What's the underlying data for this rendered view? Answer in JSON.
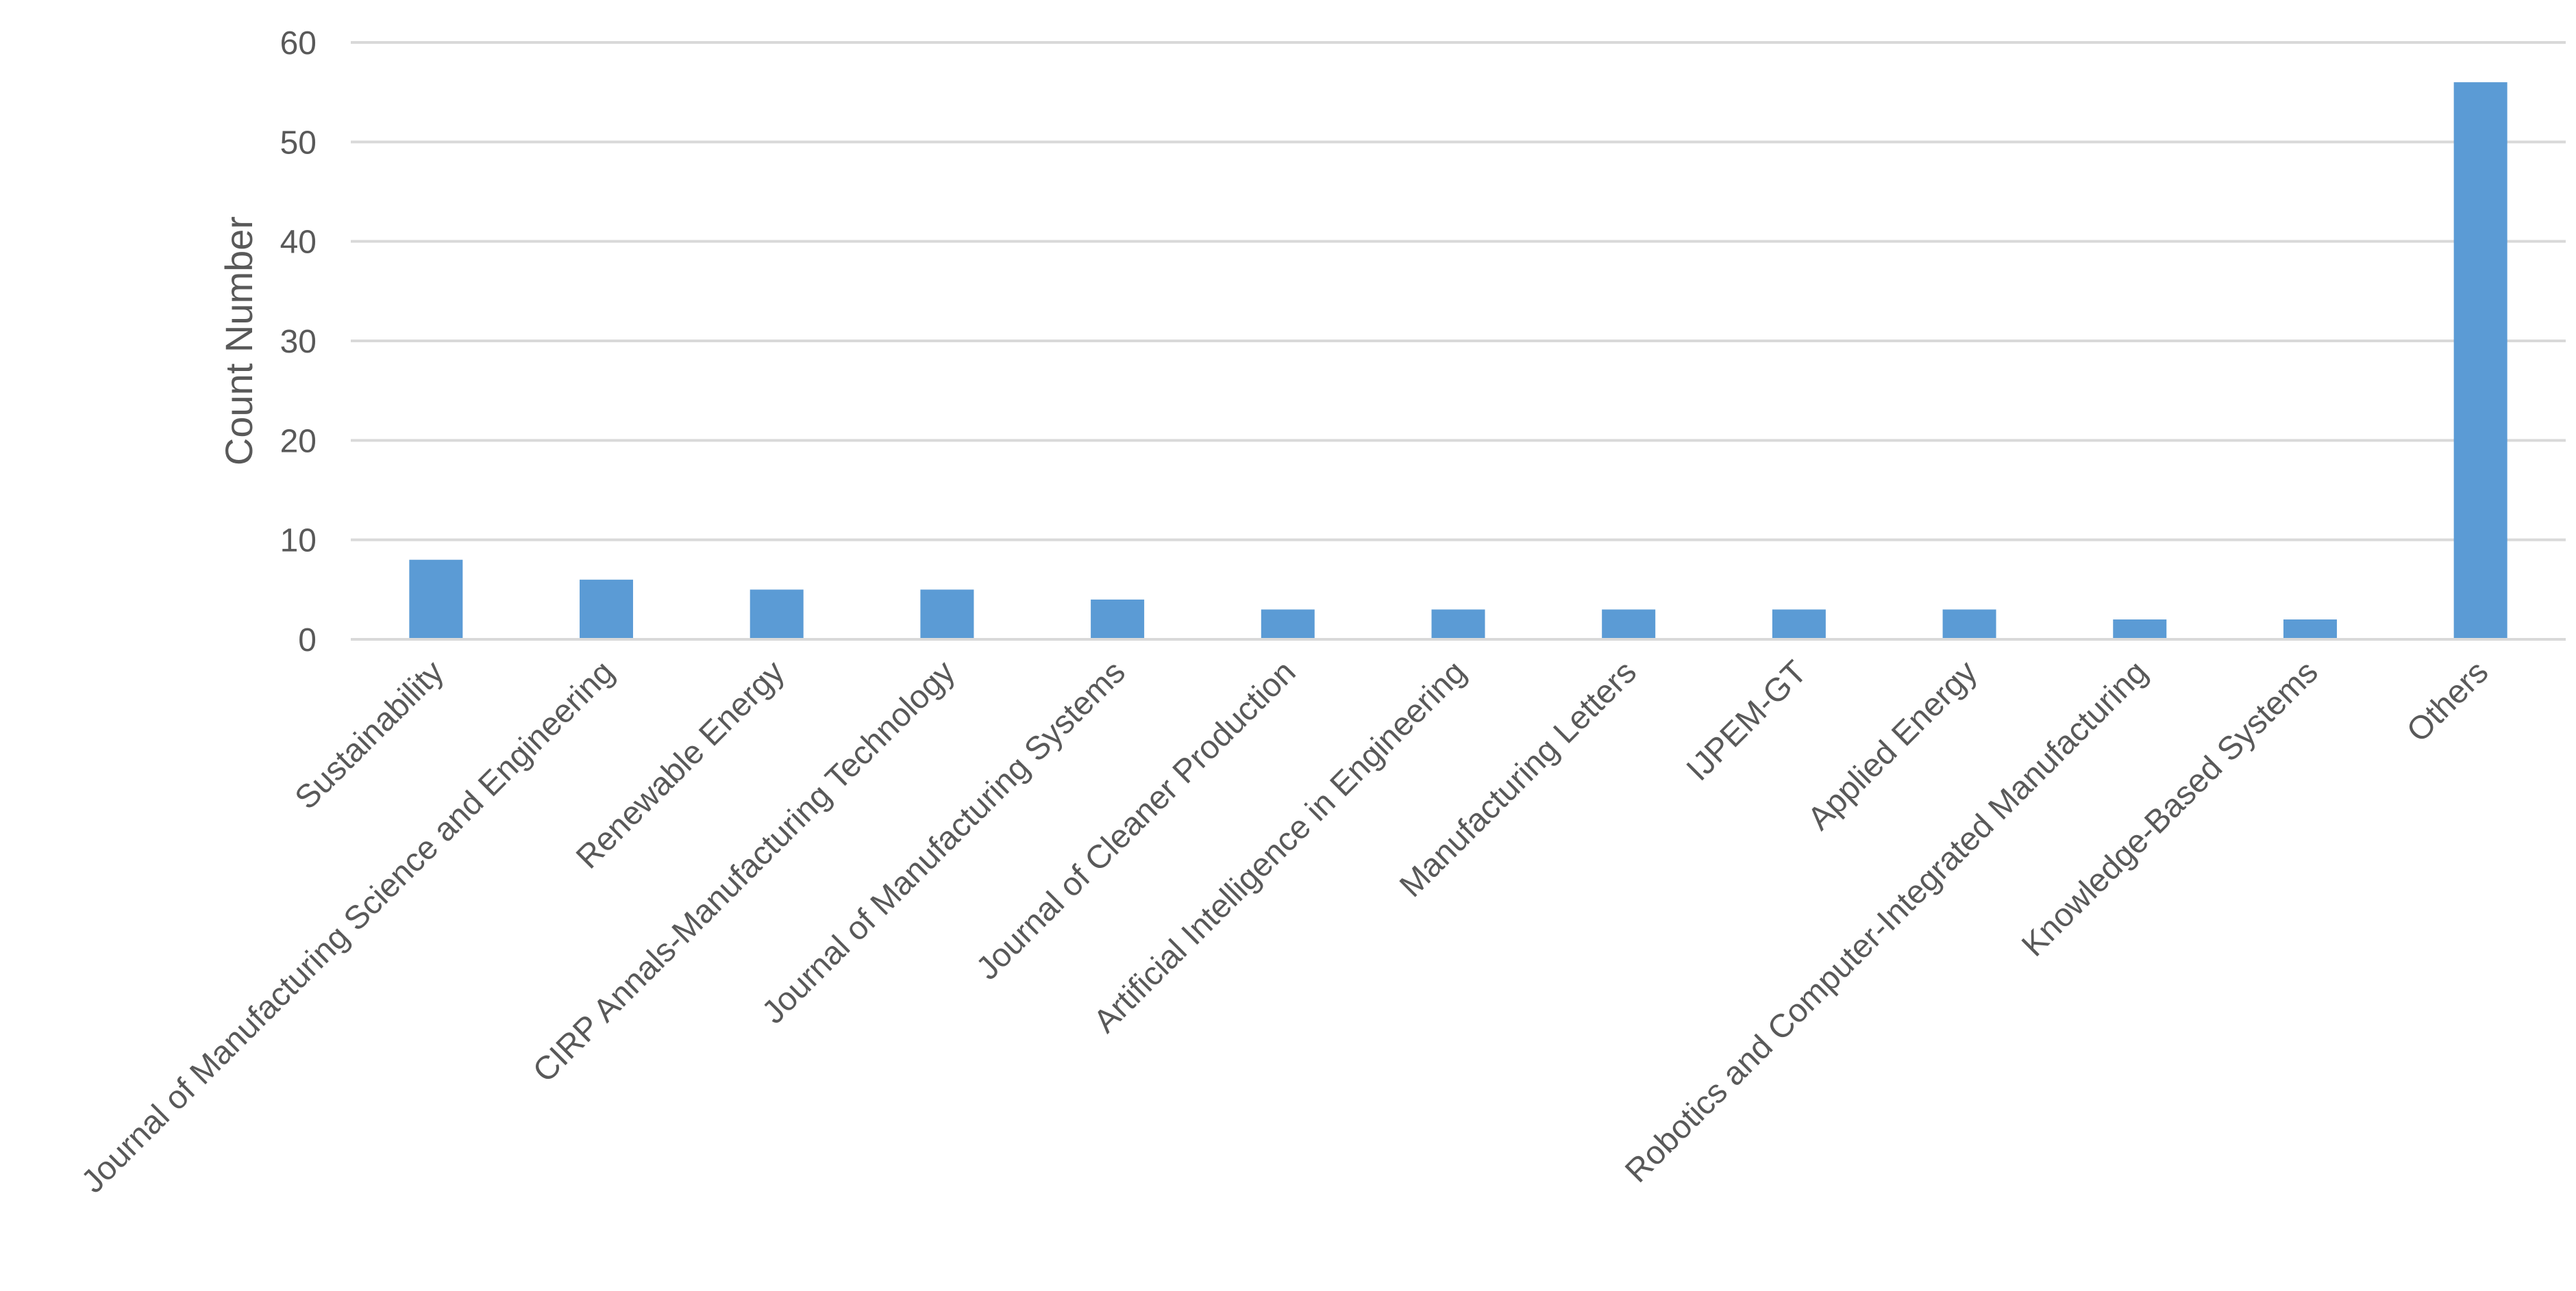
{
  "chart_data": {
    "type": "bar",
    "title": "",
    "xlabel": "",
    "ylabel": "Count Number",
    "ylim": [
      0,
      60
    ],
    "yticks": [
      0,
      10,
      20,
      30,
      40,
      50,
      60
    ],
    "grid": true,
    "legend": "none",
    "bar_color": "#5B9BD5",
    "categories": [
      "Sustainability",
      "Journal of Manufacturing Science and Engineering",
      "Renewable Energy",
      "CIRP Annals-Manufacturing Technology",
      "Journal of Manufacturing Systems",
      "Journal of Cleaner Production",
      "Artificial Intelligence in Engineering",
      "Manufacturing Letters",
      "IJPEM-GT",
      "Applied Energy",
      "Robotics and Computer-Integrated Manufacturing",
      "Knowledge-Based Systems",
      "Others"
    ],
    "values": [
      8,
      6,
      5,
      5,
      4,
      3,
      3,
      3,
      3,
      3,
      2,
      2,
      56
    ]
  }
}
